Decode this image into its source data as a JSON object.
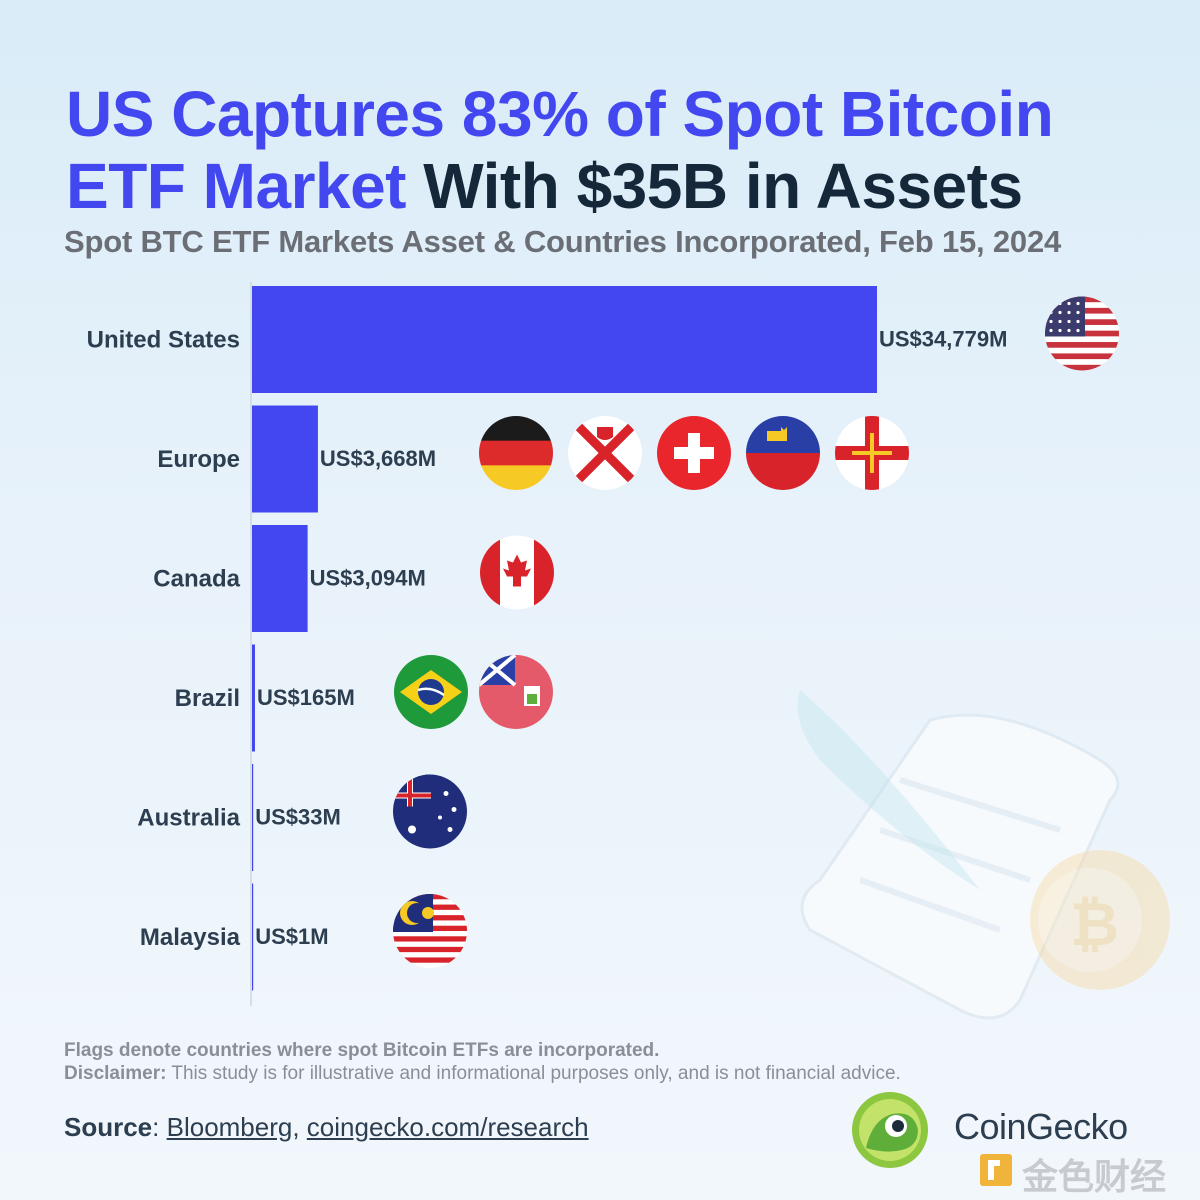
{
  "title": {
    "part1": "US Captures 83% of Spot Bitcoin",
    "part2": "ETF Market",
    "part3": " With $35B in Assets"
  },
  "subtitle": "Spot BTC ETF Markets Asset & Countries Incorporated, Feb 15, 2024",
  "chart_data": {
    "type": "bar",
    "orientation": "horizontal",
    "title": "US Captures 83% of Spot Bitcoin ETF Market With $35B in Assets",
    "subtitle": "Spot BTC ETF Markets Asset & Countries Incorporated, Feb 15, 2024",
    "categories": [
      "United States",
      "Europe",
      "Canada",
      "Brazil",
      "Australia",
      "Malaysia"
    ],
    "values": [
      34779,
      3668,
      3094,
      165,
      33,
      1
    ],
    "value_labels": [
      "US$34,779M",
      "US$3,668M",
      "US$3,094M",
      "US$165M",
      "US$33M",
      "US$1M"
    ],
    "unit": "US$ millions",
    "xlim": [
      0,
      34779
    ],
    "bar_color": "#4347f0",
    "flags": [
      [
        "united-states"
      ],
      [
        "germany",
        "jersey",
        "switzerland",
        "liechtenstein",
        "guernsey"
      ],
      [
        "canada"
      ],
      [
        "brazil",
        "bermuda"
      ],
      [
        "australia"
      ],
      [
        "malaysia"
      ]
    ]
  },
  "footnote": {
    "line1": "Flags denote countries where spot Bitcoin ETFs are incorporated.",
    "disclaimer_label": "Disclaimer:",
    "disclaimer_text": " This study is for illustrative and informational purposes only, and is not financial advice."
  },
  "source": {
    "label": "Source",
    "sep": ": ",
    "link1": "Bloomberg",
    "comma": ", ",
    "link2": "coingecko.com/research"
  },
  "brand": {
    "name": "CoinGecko",
    "watermark": "金色财经"
  },
  "colors": {
    "accent": "#4347f0",
    "dark": "#14283a",
    "subtitle": "#6b6f75"
  }
}
